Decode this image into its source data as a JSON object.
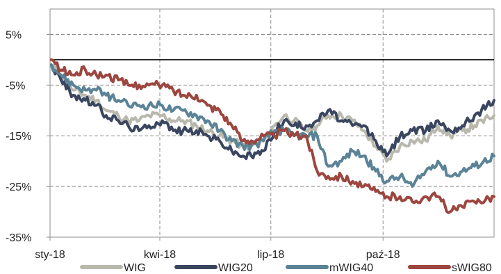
{
  "chart_data": {
    "type": "line",
    "y_ticks": [
      "5%",
      "-5%",
      "-15%",
      "-25%",
      "-35%"
    ],
    "y_tick_values": [
      5,
      -5,
      -15,
      -25,
      -35
    ],
    "ylim": [
      -35,
      10
    ],
    "x_ticks": [
      "sty-18",
      "kwi-18",
      "lip-18",
      "paź-18"
    ],
    "x_tick_dates": [
      "2018-01-01",
      "2018-04-01",
      "2018-07-01",
      "2018-10-01"
    ],
    "xlim": [
      "2018-01-01",
      "2018-12-31"
    ],
    "grid": true,
    "legend_position": "bottom",
    "series": [
      {
        "name": "WIG",
        "color": "#b9b8ad",
        "x": [
          "2018-01-02",
          "2018-01-10",
          "2018-01-20",
          "2018-01-30",
          "2018-02-08",
          "2018-02-16",
          "2018-02-26",
          "2018-03-06",
          "2018-03-15",
          "2018-03-23",
          "2018-04-03",
          "2018-04-12",
          "2018-04-20",
          "2018-05-01",
          "2018-05-10",
          "2018-05-20",
          "2018-05-30",
          "2018-06-08",
          "2018-06-15",
          "2018-06-25",
          "2018-07-04",
          "2018-07-12",
          "2018-07-20",
          "2018-07-30",
          "2018-08-08",
          "2018-08-17",
          "2018-08-28",
          "2018-09-06",
          "2018-09-15",
          "2018-09-25",
          "2018-10-04",
          "2018-10-15",
          "2018-10-25",
          "2018-11-05",
          "2018-11-15",
          "2018-11-25",
          "2018-12-05",
          "2018-12-15",
          "2018-12-31"
        ],
        "y": [
          -1,
          -3,
          -6,
          -7,
          -8,
          -10,
          -11,
          -12,
          -12,
          -11,
          -11,
          -12,
          -12,
          -13,
          -14,
          -15,
          -16,
          -17,
          -17,
          -16,
          -13,
          -11,
          -12,
          -14,
          -13,
          -11,
          -11,
          -12,
          -14,
          -17,
          -20,
          -17,
          -16,
          -16,
          -13,
          -15,
          -14,
          -13,
          -11
        ]
      },
      {
        "name": "WIG20",
        "color": "#3a4660",
        "x": [
          "2018-01-02",
          "2018-01-10",
          "2018-01-20",
          "2018-01-30",
          "2018-02-08",
          "2018-02-16",
          "2018-02-26",
          "2018-03-06",
          "2018-03-15",
          "2018-03-23",
          "2018-04-03",
          "2018-04-12",
          "2018-04-20",
          "2018-05-01",
          "2018-05-10",
          "2018-05-20",
          "2018-05-30",
          "2018-06-08",
          "2018-06-15",
          "2018-06-25",
          "2018-07-04",
          "2018-07-12",
          "2018-07-20",
          "2018-07-30",
          "2018-08-08",
          "2018-08-17",
          "2018-08-28",
          "2018-09-06",
          "2018-09-15",
          "2018-09-25",
          "2018-10-04",
          "2018-10-15",
          "2018-10-25",
          "2018-11-05",
          "2018-11-15",
          "2018-11-25",
          "2018-12-05",
          "2018-12-15",
          "2018-12-31"
        ],
        "y": [
          -1,
          -4,
          -7,
          -8,
          -9,
          -11,
          -12,
          -13,
          -14,
          -13,
          -12,
          -14,
          -14,
          -14,
          -15,
          -16,
          -18,
          -19,
          -19,
          -18,
          -14,
          -12,
          -13,
          -13,
          -12,
          -10,
          -12,
          -13,
          -13,
          -16,
          -19,
          -15,
          -14,
          -14,
          -12,
          -14,
          -13,
          -11,
          -8
        ]
      },
      {
        "name": "mWIG40",
        "color": "#5b8396",
        "x": [
          "2018-01-02",
          "2018-01-10",
          "2018-01-20",
          "2018-01-30",
          "2018-02-08",
          "2018-02-16",
          "2018-02-26",
          "2018-03-06",
          "2018-03-15",
          "2018-03-23",
          "2018-04-03",
          "2018-04-12",
          "2018-04-20",
          "2018-05-01",
          "2018-05-10",
          "2018-05-20",
          "2018-05-30",
          "2018-06-08",
          "2018-06-15",
          "2018-06-25",
          "2018-07-04",
          "2018-07-12",
          "2018-07-20",
          "2018-07-30",
          "2018-08-08",
          "2018-08-17",
          "2018-08-28",
          "2018-09-06",
          "2018-09-15",
          "2018-09-25",
          "2018-10-04",
          "2018-10-15",
          "2018-10-25",
          "2018-11-05",
          "2018-11-15",
          "2018-11-25",
          "2018-12-05",
          "2018-12-15",
          "2018-12-31"
        ],
        "y": [
          -1,
          -3,
          -5,
          -6,
          -6,
          -7,
          -8,
          -9,
          -9,
          -9,
          -9,
          -10,
          -10,
          -11,
          -12,
          -14,
          -16,
          -17,
          -17,
          -16,
          -14,
          -14,
          -15,
          -15,
          -15,
          -21,
          -20,
          -18,
          -19,
          -22,
          -24,
          -23,
          -25,
          -22,
          -20,
          -23,
          -22,
          -21,
          -19
        ]
      },
      {
        "name": "sWIG80",
        "color": "#9c4640",
        "x": [
          "2018-01-02",
          "2018-01-10",
          "2018-01-20",
          "2018-01-30",
          "2018-02-08",
          "2018-02-16",
          "2018-02-26",
          "2018-03-06",
          "2018-03-15",
          "2018-03-23",
          "2018-04-03",
          "2018-04-12",
          "2018-04-20",
          "2018-05-01",
          "2018-05-10",
          "2018-05-20",
          "2018-05-30",
          "2018-06-08",
          "2018-06-15",
          "2018-06-25",
          "2018-07-04",
          "2018-07-12",
          "2018-07-20",
          "2018-07-30",
          "2018-08-08",
          "2018-08-17",
          "2018-08-28",
          "2018-09-06",
          "2018-09-15",
          "2018-09-25",
          "2018-10-04",
          "2018-10-15",
          "2018-10-25",
          "2018-11-05",
          "2018-11-15",
          "2018-11-25",
          "2018-12-05",
          "2018-12-15",
          "2018-12-31"
        ],
        "y": [
          0,
          -2,
          -3,
          -2,
          -3,
          -3,
          -4,
          -5,
          -5,
          -5,
          -5,
          -6,
          -7,
          -7,
          -9,
          -10,
          -13,
          -16,
          -16,
          -15,
          -15,
          -14,
          -15,
          -15,
          -22,
          -23,
          -23,
          -24,
          -25,
          -26,
          -27,
          -27,
          -28,
          -27,
          -27,
          -30,
          -29,
          -28,
          -27
        ]
      }
    ]
  }
}
